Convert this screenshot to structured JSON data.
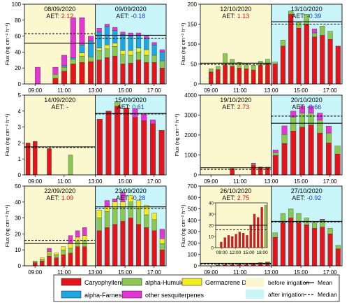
{
  "colors": {
    "caryophyllene": "#e3141b",
    "humulene": "#8cc751",
    "germacrene": "#f3ec1f",
    "farnesene": "#1ea6e0",
    "other": "#e436d4",
    "before_bg": "#fbf8cf",
    "after_bg": "#c9f5f8"
  },
  "legend": {
    "items": [
      "Caryophyllene",
      "alpha-Humulene",
      "Germacrene D",
      "alpha-Farnesene",
      "other sesquiterpenes"
    ],
    "before": "before irrigation",
    "after": "after irrigation",
    "mean": "Mean",
    "median": "Median"
  },
  "y_axis_label": "Flux (ng cm⁻² h⁻¹)",
  "x_ticks": [
    "09:00",
    "11:00",
    "13:00",
    "15:00",
    "17:00"
  ],
  "aet_prefix": "AET:",
  "inset": {
    "x_ticks": [
      "09:00",
      "12:00",
      "15:00",
      "18:00"
    ],
    "y_ticks": [
      "0",
      "10",
      "20",
      "30",
      "40"
    ]
  },
  "chart_data": [
    {
      "type": "bar",
      "stacked": true,
      "ylim": [
        0,
        100
      ],
      "y_ticks": [
        "0",
        "20",
        "40",
        "60",
        "80",
        "100"
      ],
      "left": {
        "date": "08/09/2020",
        "aet": "2.12",
        "aet_color": "#e3141b",
        "mean": 51,
        "median": 63,
        "bars": [
          [
            0,
            0,
            0,
            0,
            0
          ],
          [
            0,
            0,
            0,
            0,
            21
          ],
          [
            0,
            0,
            0,
            0,
            0
          ],
          [
            7,
            5,
            0,
            0,
            9
          ],
          [
            16,
            5,
            0,
            2,
            13
          ],
          [
            25,
            6,
            0,
            2,
            50
          ],
          [
            27,
            8,
            4,
            10,
            34
          ],
          [
            28,
            6,
            0,
            20,
            6
          ]
        ]
      },
      "right": {
        "date": "09/09/2020",
        "aet": "-0.18",
        "aet_color": "#1f3fc0",
        "mean": 61,
        "median": 57,
        "bars": [
          [
            30,
            12,
            3,
            20,
            5
          ],
          [
            33,
            11,
            5,
            23,
            3
          ],
          [
            35,
            12,
            4,
            16,
            4
          ],
          [
            25,
            12,
            5,
            20,
            3
          ],
          [
            26,
            10,
            6,
            18,
            4
          ],
          [
            30,
            10,
            5,
            16,
            3
          ],
          [
            27,
            9,
            7,
            14,
            3
          ],
          [
            27,
            9,
            0,
            13,
            3
          ],
          [
            20,
            9,
            0,
            11,
            3
          ]
        ]
      }
    },
    {
      "type": "bar",
      "stacked": true,
      "ylim": [
        0,
        200
      ],
      "y_ticks": [
        "0",
        "50",
        "100",
        "150",
        "200"
      ],
      "left": {
        "date": "12/10/2020",
        "aet": "1.13",
        "aet_color": "#e3141b",
        "mean": 52,
        "median": 49,
        "bars": [
          [
            0,
            0,
            0,
            0,
            0
          ],
          [
            30,
            8,
            0,
            0,
            0
          ],
          [
            36,
            8,
            0,
            0,
            0
          ],
          [
            48,
            28,
            0,
            0,
            0
          ],
          [
            44,
            18,
            0,
            0,
            0
          ],
          [
            40,
            14,
            0,
            0,
            0
          ],
          [
            38,
            14,
            0,
            0,
            0
          ],
          [
            35,
            12,
            0,
            0,
            0
          ],
          [
            47,
            10,
            0,
            0,
            0
          ],
          [
            50,
            12,
            0,
            0,
            0
          ]
        ]
      },
      "right": {
        "date": "13/10/2020",
        "aet": "-0.39",
        "aet_color": "#1f3fc0",
        "mean": 156,
        "median": 150,
        "bars": [
          [
            50,
            5,
            0,
            0,
            0
          ],
          [
            95,
            15,
            0,
            0,
            0
          ],
          [
            175,
            8,
            0,
            0,
            0
          ],
          [
            140,
            15,
            0,
            0,
            0
          ],
          [
            150,
            25,
            0,
            0,
            0
          ],
          [
            118,
            10,
            0,
            0,
            10
          ],
          [
            122,
            23,
            0,
            0,
            0
          ],
          [
            112,
            20,
            0,
            0,
            0
          ],
          [
            95,
            0,
            0,
            0,
            0
          ]
        ]
      }
    },
    {
      "type": "bar",
      "stacked": true,
      "ylim": [
        0,
        5
      ],
      "y_ticks": [
        "0",
        "1",
        "2",
        "3",
        "4",
        "5"
      ],
      "left": {
        "date": "14/09/2020",
        "aet": "-",
        "aet_color": "#111111",
        "mean": 1.76,
        "median": 1.72,
        "bars": [
          [
            2.0,
            0,
            0,
            0,
            0
          ],
          [
            2.1,
            0,
            0,
            0,
            0
          ],
          [
            0,
            0,
            0,
            0,
            0
          ],
          [
            1.65,
            0,
            0,
            0,
            0
          ],
          [
            0,
            0,
            0,
            0,
            0
          ],
          [
            0,
            0,
            0,
            0,
            0
          ],
          [
            0,
            1.25,
            0,
            0,
            0
          ],
          [
            0,
            0,
            0,
            0,
            0
          ],
          [
            0,
            0,
            0,
            0,
            0
          ],
          [
            0,
            0,
            0,
            0,
            0
          ]
        ]
      },
      "right": {
        "date": "15/09/2020",
        "aet": "0.61",
        "aet_color": "#1f3fc0",
        "mean": 3.85,
        "median": 3.82,
        "bars": [
          [
            3.5,
            0,
            0,
            0,
            0
          ],
          [
            4.0,
            0,
            0,
            0,
            0
          ],
          [
            4.3,
            0.3,
            0,
            0,
            0
          ],
          [
            4.2,
            0,
            0,
            0,
            0
          ],
          [
            3.6,
            0,
            0,
            0,
            0.55
          ],
          [
            3.4,
            0,
            0,
            0,
            0.4
          ],
          [
            3.2,
            0,
            0,
            0,
            0.25
          ],
          [
            2.8,
            0,
            0,
            0,
            0
          ]
        ]
      }
    },
    {
      "type": "bar",
      "stacked": true,
      "ylim": [
        0,
        4000
      ],
      "y_ticks": [
        "0",
        "1000",
        "2000",
        "3000",
        "4000"
      ],
      "left": {
        "date": "19/10/2020",
        "aet": "2.73",
        "aet_color": "#e3141b",
        "mean": 360,
        "median": 280,
        "bars": [
          [
            0,
            0,
            0,
            0,
            0
          ],
          [
            0,
            0,
            0,
            0,
            0
          ],
          [
            0,
            0,
            0,
            0,
            0
          ],
          [
            0,
            0,
            0,
            0,
            0
          ],
          [
            320,
            0,
            0,
            0,
            0
          ],
          [
            0,
            0,
            0,
            0,
            0
          ],
          [
            0,
            0,
            0,
            0,
            0
          ],
          [
            480,
            50,
            0,
            0,
            60
          ],
          [
            400,
            0,
            0,
            0,
            0
          ],
          [
            350,
            40,
            0,
            0,
            0
          ]
        ]
      },
      "right": {
        "date": "20/10/2020",
        "aet": "-0.66",
        "aet_color": "#1f3fc0",
        "mean": 2590,
        "median": 2950,
        "bars": [
          [
            980,
            140,
            0,
            0,
            130
          ],
          [
            1580,
            450,
            0,
            0,
            430
          ],
          [
            2200,
            700,
            0,
            0,
            300
          ],
          [
            2400,
            700,
            0,
            0,
            350
          ],
          [
            2500,
            600,
            0,
            0,
            350
          ],
          [
            2100,
            650,
            0,
            0,
            350
          ],
          [
            1600,
            500,
            0,
            0,
            350
          ],
          [
            1050,
            400,
            0,
            0,
            0
          ]
        ]
      }
    },
    {
      "type": "bar",
      "stacked": true,
      "ylim": [
        0,
        50
      ],
      "y_ticks": [
        "0",
        "10",
        "20",
        "30",
        "40",
        "50"
      ],
      "left": {
        "date": "22/09/2020",
        "aet": "1.09",
        "aet_color": "#e3141b",
        "mean": 14,
        "median": 16,
        "bars": [
          [
            0,
            0,
            0,
            0,
            0
          ],
          [
            2,
            1,
            0,
            0,
            0
          ],
          [
            3,
            1,
            1,
            0,
            0
          ],
          [
            6,
            2,
            1,
            0,
            2
          ],
          [
            5,
            2,
            1,
            0,
            0
          ],
          [
            7,
            3,
            2,
            0,
            0
          ],
          [
            8,
            3,
            3,
            0,
            5
          ],
          [
            12,
            3,
            3,
            0,
            4
          ],
          [
            12,
            4,
            3,
            0,
            5
          ],
          [
            0,
            0,
            0,
            0,
            0
          ]
        ]
      },
      "right": {
        "date": "23/09/2020",
        "aet": "-0.28",
        "aet_color": "#1f3fc0",
        "mean": 37,
        "median": 36,
        "bars": [
          [
            22,
            8,
            5,
            0,
            0
          ],
          [
            24,
            10,
            3,
            0,
            4
          ],
          [
            26,
            10,
            4,
            0,
            2
          ],
          [
            28,
            9,
            3,
            0,
            6
          ],
          [
            30,
            10,
            4,
            0,
            0
          ],
          [
            26,
            10,
            5,
            0,
            0
          ],
          [
            24,
            8,
            6,
            0,
            0
          ],
          [
            22,
            7,
            4,
            0,
            0
          ],
          [
            10,
            4,
            3,
            0,
            6
          ]
        ]
      }
    },
    {
      "type": "bar",
      "stacked": true,
      "ylim": [
        0,
        700
      ],
      "y_ticks": [
        "0",
        "100",
        "200",
        "300",
        "400",
        "500",
        "600",
        "700"
      ],
      "left": {
        "date": "26/10/2020",
        "aet": "2.75",
        "aet_color": "#e3141b",
        "mean": 22,
        "median": 16,
        "bars": [
          [
            0,
            0,
            0,
            0,
            0
          ],
          [
            0,
            0,
            0,
            0,
            0
          ],
          [
            8,
            0,
            0,
            0,
            0
          ],
          [
            10,
            0,
            0,
            0,
            0
          ],
          [
            10,
            0,
            0,
            0,
            0
          ],
          [
            14,
            0,
            0,
            0,
            0
          ],
          [
            12,
            0,
            0,
            0,
            0
          ],
          [
            16,
            0,
            0,
            0,
            0
          ],
          [
            28,
            0,
            0,
            0,
            0
          ],
          [
            28,
            8,
            0,
            0,
            0
          ]
        ]
      },
      "right": {
        "date": "27/10/2020",
        "aet": "-0.92",
        "aet_color": "#1f3fc0",
        "mean": 390,
        "median": 385,
        "bars": [
          [
            250,
            40,
            0,
            0,
            0
          ],
          [
            380,
            80,
            0,
            0,
            0
          ],
          [
            420,
            80,
            0,
            0,
            0
          ],
          [
            380,
            80,
            0,
            0,
            0
          ],
          [
            360,
            60,
            0,
            0,
            0
          ],
          [
            330,
            50,
            0,
            0,
            0
          ],
          [
            340,
            60,
            0,
            5,
            5
          ],
          [
            280,
            50,
            0,
            0,
            0
          ],
          [
            150,
            30,
            0,
            0,
            0
          ]
        ]
      },
      "inset": {
        "ylim": [
          0,
          40
        ],
        "median": 16,
        "mean": 20,
        "values": [
          0,
          5,
          9,
          11,
          10,
          12,
          14,
          13,
          11,
          20,
          30,
          27,
          36,
          38
        ]
      }
    }
  ]
}
